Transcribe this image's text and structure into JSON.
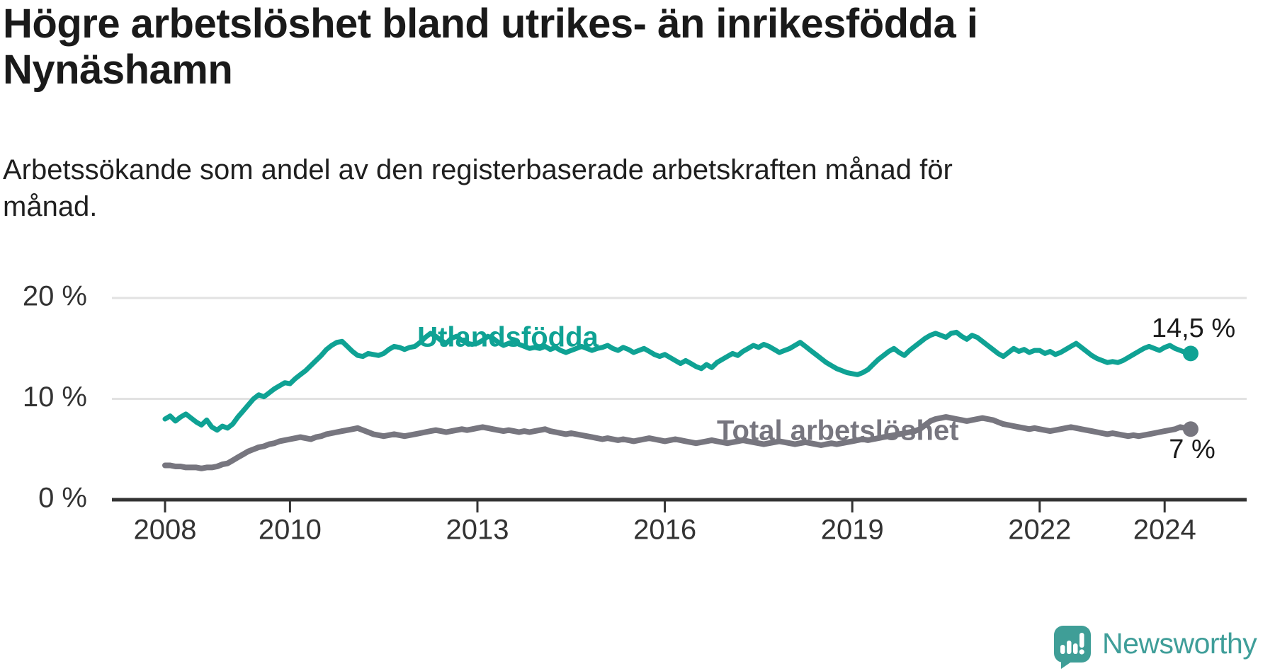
{
  "header": {
    "title": "Högre arbetslöshet bland utrikes- än inrikesfödda i Nynäshamn",
    "subtitle": "Arbetssökande som andel av den registerbaserade arbetskraften månad för månad."
  },
  "chart_data": {
    "type": "line",
    "unit": "%",
    "x_start": {
      "year": 2008,
      "month": 1
    },
    "months_per_point": 1,
    "ylim": [
      0,
      20
    ],
    "grid": "horizontal",
    "yticks": [
      {
        "value": 0,
        "label": "0 %"
      },
      {
        "value": 10,
        "label": "10 %"
      },
      {
        "value": 20,
        "label": "20 %"
      }
    ],
    "xticks": [
      {
        "year": 2008,
        "label": "2008"
      },
      {
        "year": 2010,
        "label": "2010"
      },
      {
        "year": 2013,
        "label": "2013"
      },
      {
        "year": 2016,
        "label": "2016"
      },
      {
        "year": 2019,
        "label": "2019"
      },
      {
        "year": 2022,
        "label": "2022"
      },
      {
        "year": 2024,
        "label": "2024"
      }
    ],
    "series": [
      {
        "name": "Utlandsfödda",
        "color": "#0FA294",
        "end_label": "14,5 %",
        "end_value": 14.5,
        "values": [
          8.0,
          8.3,
          7.8,
          8.2,
          8.5,
          8.1,
          7.7,
          7.4,
          7.9,
          7.2,
          6.9,
          7.3,
          7.1,
          7.5,
          8.2,
          8.8,
          9.4,
          10.0,
          10.4,
          10.2,
          10.6,
          11.0,
          11.3,
          11.6,
          11.5,
          12.0,
          12.4,
          12.8,
          13.3,
          13.8,
          14.3,
          14.9,
          15.3,
          15.6,
          15.7,
          15.2,
          14.7,
          14.3,
          14.2,
          14.5,
          14.4,
          14.3,
          14.5,
          14.9,
          15.2,
          15.1,
          14.9,
          15.1,
          15.2,
          15.6,
          16.1,
          16.5,
          16.2,
          15.8,
          15.5,
          16.0,
          16.2,
          15.8,
          15.5,
          15.4,
          15.5,
          15.8,
          16.2,
          16.0,
          15.6,
          15.3,
          15.5,
          15.7,
          15.4,
          15.2,
          15.0,
          15.1,
          15.0,
          15.2,
          14.9,
          15.1,
          14.8,
          14.6,
          14.8,
          15.0,
          15.2,
          15.0,
          14.8,
          15.0,
          15.1,
          15.3,
          15.0,
          14.8,
          15.1,
          14.9,
          14.6,
          14.8,
          15.0,
          14.7,
          14.4,
          14.2,
          14.4,
          14.1,
          13.8,
          13.5,
          13.8,
          13.5,
          13.2,
          13.0,
          13.4,
          13.1,
          13.6,
          13.9,
          14.2,
          14.5,
          14.3,
          14.7,
          15.0,
          15.3,
          15.1,
          15.4,
          15.2,
          14.9,
          14.6,
          14.8,
          15.0,
          15.3,
          15.6,
          15.2,
          14.8,
          14.4,
          14.0,
          13.6,
          13.3,
          13.0,
          12.8,
          12.6,
          12.5,
          12.4,
          12.6,
          12.9,
          13.4,
          13.9,
          14.3,
          14.7,
          15.0,
          14.6,
          14.3,
          14.8,
          15.2,
          15.6,
          16.0,
          16.3,
          16.5,
          16.3,
          16.1,
          16.5,
          16.6,
          16.2,
          15.9,
          16.3,
          16.1,
          15.7,
          15.3,
          14.9,
          14.5,
          14.2,
          14.6,
          15.0,
          14.7,
          14.9,
          14.6,
          14.8,
          14.8,
          14.5,
          14.7,
          14.4,
          14.6,
          14.9,
          15.2,
          15.5,
          15.1,
          14.7,
          14.3,
          14.0,
          13.8,
          13.6,
          13.7,
          13.6,
          13.8,
          14.1,
          14.4,
          14.7,
          15.0,
          15.2,
          15.0,
          14.8,
          15.1,
          15.3,
          15.0,
          14.8,
          14.6,
          14.5
        ]
      },
      {
        "name": "Total arbetslöshet",
        "color": "#77767F",
        "end_label": "7 %",
        "end_value": 7,
        "values": [
          3.4,
          3.4,
          3.3,
          3.3,
          3.2,
          3.2,
          3.2,
          3.1,
          3.2,
          3.2,
          3.3,
          3.5,
          3.6,
          3.9,
          4.2,
          4.5,
          4.8,
          5.0,
          5.2,
          5.3,
          5.5,
          5.6,
          5.8,
          5.9,
          6.0,
          6.1,
          6.2,
          6.1,
          6.0,
          6.2,
          6.3,
          6.5,
          6.6,
          6.7,
          6.8,
          6.9,
          7.0,
          7.1,
          6.9,
          6.7,
          6.5,
          6.4,
          6.3,
          6.4,
          6.5,
          6.4,
          6.3,
          6.4,
          6.5,
          6.6,
          6.7,
          6.8,
          6.9,
          6.8,
          6.7,
          6.8,
          6.9,
          7.0,
          6.9,
          7.0,
          7.1,
          7.2,
          7.1,
          7.0,
          6.9,
          6.8,
          6.9,
          6.8,
          6.7,
          6.8,
          6.7,
          6.8,
          6.9,
          7.0,
          6.8,
          6.7,
          6.6,
          6.5,
          6.6,
          6.5,
          6.4,
          6.3,
          6.2,
          6.1,
          6.0,
          6.1,
          6.0,
          5.9,
          6.0,
          5.9,
          5.8,
          5.9,
          6.0,
          6.1,
          6.0,
          5.9,
          5.8,
          5.9,
          6.0,
          5.9,
          5.8,
          5.7,
          5.6,
          5.7,
          5.8,
          5.9,
          5.8,
          5.7,
          5.6,
          5.7,
          5.8,
          5.9,
          5.8,
          5.7,
          5.6,
          5.5,
          5.6,
          5.7,
          5.8,
          5.7,
          5.6,
          5.5,
          5.6,
          5.7,
          5.6,
          5.5,
          5.4,
          5.5,
          5.6,
          5.5,
          5.6,
          5.7,
          5.8,
          5.9,
          6.0,
          5.9,
          6.0,
          6.1,
          6.2,
          6.3,
          6.4,
          6.5,
          6.6,
          6.7,
          6.8,
          7.0,
          7.4,
          7.8,
          8.0,
          8.1,
          8.2,
          8.1,
          8.0,
          7.9,
          7.8,
          7.9,
          8.0,
          8.1,
          8.0,
          7.9,
          7.7,
          7.5,
          7.4,
          7.3,
          7.2,
          7.1,
          7.0,
          7.1,
          7.0,
          6.9,
          6.8,
          6.9,
          7.0,
          7.1,
          7.2,
          7.1,
          7.0,
          6.9,
          6.8,
          6.7,
          6.6,
          6.5,
          6.6,
          6.5,
          6.4,
          6.3,
          6.4,
          6.3,
          6.4,
          6.5,
          6.6,
          6.7,
          6.8,
          6.9,
          7.0,
          7.2,
          7.1,
          7.0
        ]
      }
    ]
  },
  "branding": {
    "name": "Newsworthy",
    "logo_icon": "newsworthy-speech-bubble-bar-chart-icon",
    "color": "#3F9E99"
  }
}
